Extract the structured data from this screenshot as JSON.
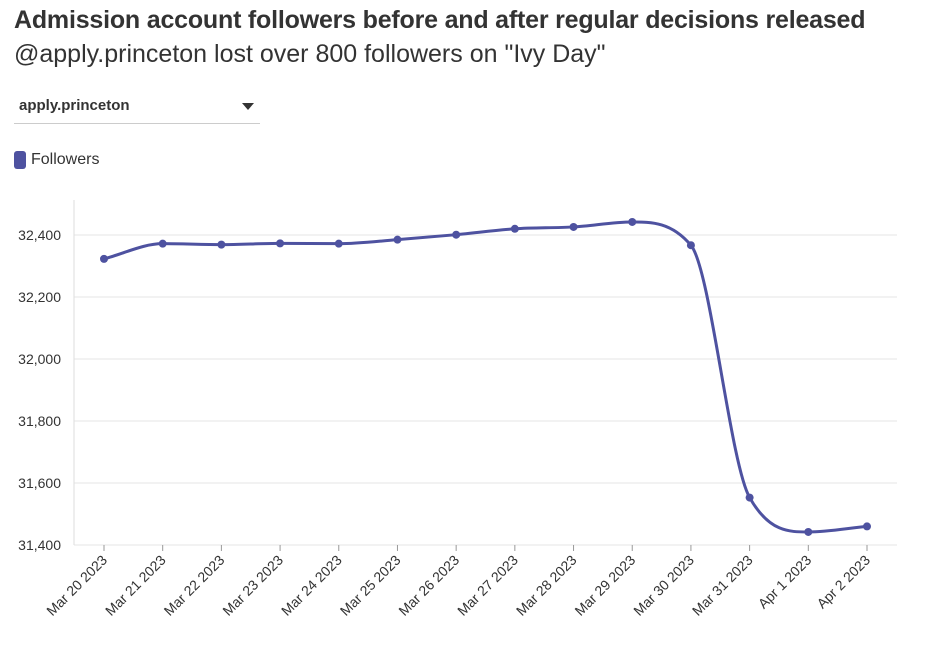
{
  "header": {
    "title": "Admission account followers before and after regular decisions released",
    "subtitle": "@apply.princeton lost over 800 followers on \"Ivy Day\""
  },
  "controls": {
    "account_select": {
      "value": "apply.princeton"
    }
  },
  "legend": {
    "items": [
      {
        "label": "Followers"
      }
    ]
  },
  "colors": {
    "series": "#4e52a0",
    "grid": "#e6e6e6",
    "text": "#333333"
  },
  "chart_data": {
    "type": "line",
    "title": "Admission account followers before and after regular decisions released",
    "subtitle": "@apply.princeton lost over 800 followers on \"Ivy Day\"",
    "xlabel": "",
    "ylabel": "",
    "ylim": [
      31400,
      32500
    ],
    "yticks": [
      31400,
      31600,
      31800,
      32000,
      32200,
      32400
    ],
    "ytick_labels": [
      "31,400",
      "31,600",
      "31,800",
      "32,000",
      "32,200",
      "32,400"
    ],
    "categories": [
      "Mar 20 2023",
      "Mar 21 2023",
      "Mar 22 2023",
      "Mar 23 2023",
      "Mar 24 2023",
      "Mar 25 2023",
      "Mar 26 2023",
      "Mar 27 2023",
      "Mar 28 2023",
      "Mar 29 2023",
      "Mar 30 2023",
      "Mar 31 2023",
      "Apr 1 2023",
      "Apr 2 2023"
    ],
    "series": [
      {
        "name": "Followers",
        "values": [
          32323,
          32372,
          32369,
          32373,
          32372,
          32385,
          32401,
          32420,
          32426,
          32442,
          32367,
          31553,
          31442,
          31460
        ]
      }
    ],
    "grid": true,
    "legend_position": "top-left"
  }
}
